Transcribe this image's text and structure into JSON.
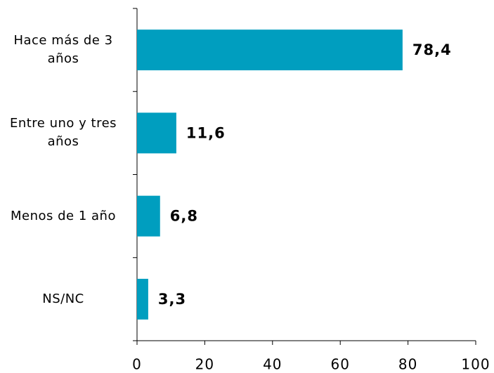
{
  "chart_data": {
    "type": "bar",
    "orientation": "horizontal",
    "categories": [
      "Hace más de 3 años",
      "Entre uno y tres años",
      "Menos de 1 año",
      "NS/NC"
    ],
    "values": [
      78.4,
      11.6,
      6.8,
      3.3
    ],
    "value_labels": [
      "78,4",
      "11,6",
      "6,8",
      "3,3"
    ],
    "color": "#009ebf",
    "xlim": [
      0,
      100
    ],
    "xticks": [
      0,
      20,
      40,
      60,
      80,
      100
    ],
    "grid": false
  }
}
